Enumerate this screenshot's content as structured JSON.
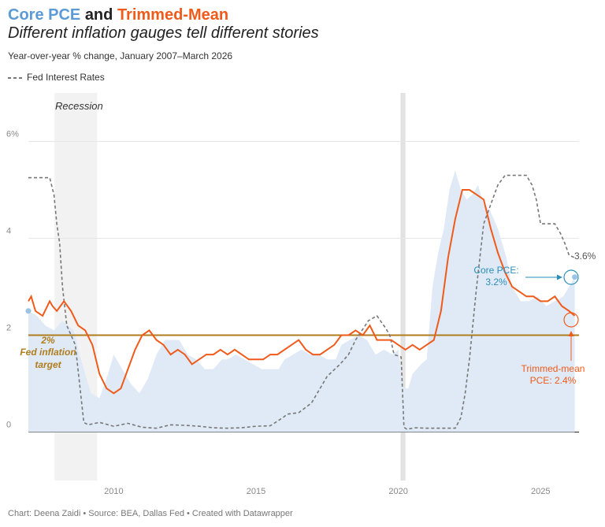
{
  "header": {
    "title_part1": "Core PCE",
    "title_part2": "and",
    "title_part3": "Trimmed-Mean",
    "subtitle": "Different inflation gauges tell different stories",
    "description": "Year-over-year % change, January 2007–March 2026",
    "legend_label": "Fed Interest Rates"
  },
  "footer": {
    "credit": "Chart: Deena Zaidi • Source: BEA, Dallas Fed • Created with Datawrapper"
  },
  "annotations": {
    "recession": "Recession",
    "target_line1": "2%",
    "target_line2": "Fed inflation",
    "target_line3": "target",
    "core_line1": "Core PCE:",
    "core_line2": "3.2%",
    "trim_line1": "Trimmed-mean",
    "trim_line2": "PCE: 2.4%",
    "fed_end_label": "3.6%"
  },
  "colors": {
    "core": "#5b9bd5",
    "core_area": "#dfeaf6",
    "trimmed": "#f05a1a",
    "fed": "#777777",
    "target": "#b07d1e",
    "recession": "#ececec",
    "core_label": "#2b8fb8"
  },
  "chart_data": {
    "type": "line",
    "x_unit": "year",
    "xlim": [
      2007,
      2026.35
    ],
    "ylim": [
      -1,
      7
    ],
    "yticks": [
      0,
      2,
      4,
      6
    ],
    "ytick_labels": [
      "0",
      "2",
      "4",
      "6%"
    ],
    "xticks": [
      2010,
      2015,
      2020,
      2025
    ],
    "xtick_labels": [
      "2010",
      "2015",
      "2020",
      "2025"
    ],
    "target": 2,
    "recession_periods": [
      [
        2007.92,
        2009.42
      ],
      [
        2020.08,
        2020.25
      ]
    ],
    "series": [
      {
        "name": "Core PCE",
        "x": [
          2007.0,
          2007.3,
          2007.6,
          2007.9,
          2008.2,
          2008.4,
          2008.6,
          2008.8,
          2009.0,
          2009.2,
          2009.5,
          2009.8,
          2010.0,
          2010.3,
          2010.6,
          2010.9,
          2011.2,
          2011.5,
          2011.8,
          2012.0,
          2012.3,
          2012.6,
          2012.9,
          2013.2,
          2013.5,
          2013.8,
          2014.0,
          2014.3,
          2014.6,
          2014.9,
          2015.2,
          2015.5,
          2015.8,
          2016.0,
          2016.3,
          2016.6,
          2016.9,
          2017.2,
          2017.5,
          2017.8,
          2018.0,
          2018.3,
          2018.6,
          2018.9,
          2019.2,
          2019.5,
          2019.8,
          2020.0,
          2020.2,
          2020.35,
          2020.5,
          2020.8,
          2021.0,
          2021.2,
          2021.4,
          2021.6,
          2021.8,
          2022.0,
          2022.2,
          2022.4,
          2022.6,
          2022.8,
          2023.0,
          2023.2,
          2023.5,
          2023.8,
          2024.0,
          2024.3,
          2024.6,
          2024.9,
          2025.2,
          2025.5,
          2025.8,
          2026.0,
          2026.2
        ],
        "values": [
          2.5,
          2.4,
          2.2,
          2.1,
          2.3,
          2.2,
          2.1,
          1.6,
          1.2,
          0.8,
          0.7,
          1.2,
          1.6,
          1.3,
          1.0,
          0.8,
          1.1,
          1.6,
          1.9,
          1.9,
          1.9,
          1.6,
          1.5,
          1.3,
          1.3,
          1.5,
          1.5,
          1.6,
          1.5,
          1.4,
          1.3,
          1.3,
          1.3,
          1.5,
          1.6,
          1.7,
          1.6,
          1.6,
          1.5,
          1.5,
          1.8,
          1.9,
          2.0,
          1.9,
          1.6,
          1.7,
          1.6,
          1.7,
          0.9,
          0.9,
          1.2,
          1.4,
          1.5,
          3.0,
          3.7,
          4.2,
          5.0,
          5.4,
          5.0,
          4.8,
          4.9,
          5.1,
          4.7,
          4.6,
          4.2,
          3.6,
          3.0,
          2.7,
          2.7,
          2.8,
          2.6,
          2.7,
          2.8,
          3.0,
          3.2
        ]
      },
      {
        "name": "Trimmed-mean PCE",
        "x": [
          2007.0,
          2007.1,
          2007.25,
          2007.5,
          2007.75,
          2007.85,
          2008.0,
          2008.25,
          2008.5,
          2008.75,
          2009.0,
          2009.25,
          2009.5,
          2009.75,
          2010.0,
          2010.25,
          2010.5,
          2010.75,
          2011.0,
          2011.25,
          2011.5,
          2011.75,
          2012.0,
          2012.25,
          2012.5,
          2012.75,
          2013.0,
          2013.25,
          2013.5,
          2013.75,
          2014.0,
          2014.25,
          2014.5,
          2014.75,
          2015.0,
          2015.25,
          2015.5,
          2015.75,
          2016.0,
          2016.25,
          2016.5,
          2016.75,
          2017.0,
          2017.25,
          2017.5,
          2017.75,
          2018.0,
          2018.25,
          2018.5,
          2018.75,
          2019.0,
          2019.25,
          2019.5,
          2019.75,
          2020.0,
          2020.25,
          2020.5,
          2020.75,
          2021.0,
          2021.25,
          2021.5,
          2021.75,
          2022.0,
          2022.25,
          2022.5,
          2022.75,
          2023.0,
          2023.25,
          2023.5,
          2023.75,
          2024.0,
          2024.25,
          2024.5,
          2024.75,
          2025.0,
          2025.25,
          2025.5,
          2025.75,
          2026.0,
          2026.2
        ],
        "values": [
          2.7,
          2.8,
          2.5,
          2.4,
          2.7,
          2.6,
          2.5,
          2.7,
          2.5,
          2.2,
          2.1,
          1.8,
          1.2,
          0.9,
          0.8,
          0.9,
          1.3,
          1.7,
          2.0,
          2.1,
          1.9,
          1.8,
          1.6,
          1.7,
          1.6,
          1.4,
          1.5,
          1.6,
          1.6,
          1.7,
          1.6,
          1.7,
          1.6,
          1.5,
          1.5,
          1.5,
          1.6,
          1.6,
          1.7,
          1.8,
          1.9,
          1.7,
          1.6,
          1.6,
          1.7,
          1.8,
          2.0,
          2.0,
          2.1,
          2.0,
          2.2,
          1.9,
          1.9,
          1.9,
          1.8,
          1.7,
          1.8,
          1.7,
          1.8,
          1.9,
          2.5,
          3.6,
          4.4,
          5.0,
          5.0,
          4.9,
          4.8,
          4.2,
          3.7,
          3.3,
          3.0,
          2.9,
          2.8,
          2.8,
          2.7,
          2.7,
          2.8,
          2.6,
          2.5,
          2.4
        ]
      },
      {
        "name": "Fed Interest Rates",
        "x": [
          2007.0,
          2007.3,
          2007.55,
          2007.75,
          2007.9,
          2008.0,
          2008.1,
          2008.2,
          2008.35,
          2008.5,
          2008.65,
          2008.8,
          2008.95,
          2009.1,
          2009.5,
          2010.0,
          2010.5,
          2011.0,
          2011.5,
          2012.0,
          2012.5,
          2013.0,
          2013.5,
          2014.0,
          2014.5,
          2015.0,
          2015.5,
          2015.95,
          2016.1,
          2016.5,
          2016.95,
          2017.25,
          2017.5,
          2017.95,
          2018.25,
          2018.5,
          2018.95,
          2019.25,
          2019.55,
          2019.7,
          2019.85,
          2020.1,
          2020.2,
          2020.3,
          2020.6,
          2021.0,
          2021.5,
          2022.0,
          2022.2,
          2022.35,
          2022.5,
          2022.75,
          2023.0,
          2023.25,
          2023.5,
          2023.75,
          2024.0,
          2024.5,
          2024.7,
          2024.85,
          2025.0,
          2025.5,
          2025.7,
          2025.85,
          2026.0,
          2026.2
        ],
        "values": [
          5.25,
          5.25,
          5.25,
          5.25,
          4.9,
          4.3,
          3.9,
          3.0,
          2.2,
          2.0,
          1.8,
          1.0,
          0.2,
          0.15,
          0.2,
          0.12,
          0.18,
          0.1,
          0.08,
          0.15,
          0.14,
          0.12,
          0.09,
          0.08,
          0.09,
          0.12,
          0.13,
          0.3,
          0.37,
          0.4,
          0.6,
          0.9,
          1.15,
          1.4,
          1.6,
          1.9,
          2.3,
          2.4,
          2.15,
          2.0,
          1.6,
          1.55,
          0.1,
          0.06,
          0.09,
          0.08,
          0.08,
          0.08,
          0.3,
          0.8,
          1.5,
          3.0,
          4.3,
          4.7,
          5.1,
          5.3,
          5.3,
          5.3,
          5.1,
          4.8,
          4.3,
          4.3,
          4.1,
          3.9,
          3.65,
          3.6
        ]
      }
    ]
  }
}
